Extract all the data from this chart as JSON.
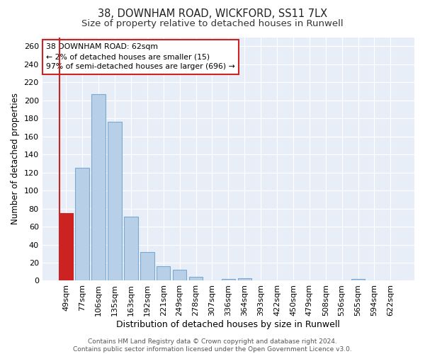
{
  "title": "38, DOWNHAM ROAD, WICKFORD, SS11 7LX",
  "subtitle": "Size of property relative to detached houses in Runwell",
  "xlabel": "Distribution of detached houses by size in Runwell",
  "ylabel": "Number of detached properties",
  "categories": [
    "49sqm",
    "77sqm",
    "106sqm",
    "135sqm",
    "163sqm",
    "192sqm",
    "221sqm",
    "249sqm",
    "278sqm",
    "307sqm",
    "336sqm",
    "364sqm",
    "393sqm",
    "422sqm",
    "450sqm",
    "479sqm",
    "508sqm",
    "536sqm",
    "565sqm",
    "594sqm",
    "622sqm"
  ],
  "values": [
    75,
    125,
    207,
    176,
    71,
    32,
    16,
    12,
    4,
    0,
    2,
    3,
    0,
    0,
    0,
    0,
    0,
    0,
    2,
    0,
    0
  ],
  "bar_color": "#b8cfe8",
  "bar_edge_color": "#7aaad0",
  "highlight_bar_index": 0,
  "highlight_color": "#cc2222",
  "highlight_edge_color": "#cc2222",
  "annotation_box_text": "38 DOWNHAM ROAD: 62sqm\n← 2% of detached houses are smaller (15)\n97% of semi-detached houses are larger (696) →",
  "vline_x": -0.5,
  "ylim": [
    0,
    270
  ],
  "yticks": [
    0,
    20,
    40,
    60,
    80,
    100,
    120,
    140,
    160,
    180,
    200,
    220,
    240,
    260
  ],
  "background_color": "#ffffff",
  "plot_bg_color": "#e8eef8",
  "grid_color": "#ffffff",
  "title_fontsize": 10.5,
  "subtitle_fontsize": 9.5,
  "footer_text": "Contains HM Land Registry data © Crown copyright and database right 2024.\nContains public sector information licensed under the Open Government Licence v3.0."
}
